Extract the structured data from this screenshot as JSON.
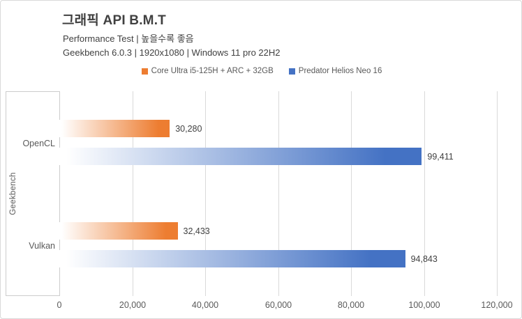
{
  "chart_data": {
    "type": "bar",
    "orientation": "horizontal",
    "title": "그래픽 API B.M.T",
    "subtitle1": "Performance Test | 높을수록 좋음",
    "subtitle2": "Geekbench 6.0.3 | 1920x1080 | Windows 11 pro 22H2",
    "ylabel": "Geekbench",
    "categories": [
      "OpenCL",
      "Vulkan"
    ],
    "series": [
      {
        "name": "Core Ultra i5-125H + ARC + 32GB",
        "color": "#ED7D31",
        "values": [
          30280,
          32433
        ],
        "labels": [
          "30,280",
          "32,433"
        ]
      },
      {
        "name": "Predator Helios Neo 16",
        "color": "#4472C4",
        "values": [
          99411,
          94843
        ],
        "labels": [
          "99,411",
          "94,843"
        ]
      }
    ],
    "xlim": [
      0,
      120000
    ],
    "x_ticks": [
      "0",
      "20,000",
      "40,000",
      "60,000",
      "80,000",
      "100,000",
      "120,000"
    ],
    "grid": true,
    "legend_position": "top",
    "colors": {
      "title_text": "#404040",
      "axis_text": "#595959",
      "gridline": "#D9D9D9",
      "panel_border": "#CCCCCC",
      "frame_border": "#D9D9D9",
      "bar_gradient_start": "#FFFFFF"
    }
  }
}
